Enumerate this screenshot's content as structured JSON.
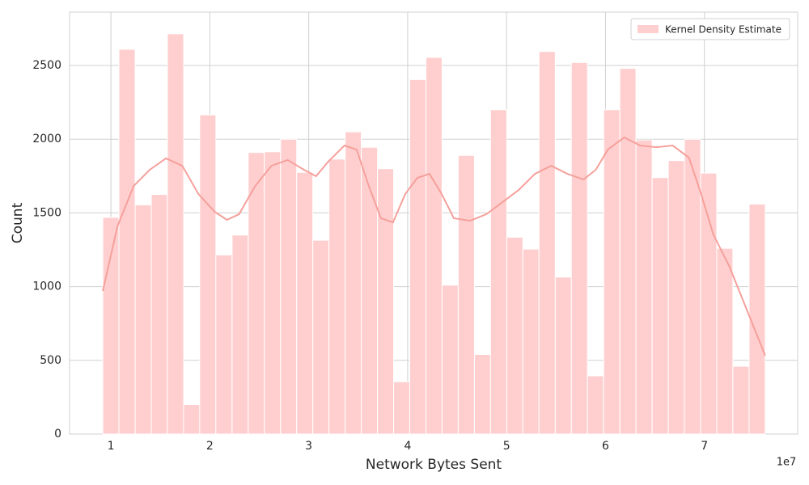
{
  "chart_data": {
    "type": "histogram",
    "xlabel": "Network Bytes Sent",
    "ylabel": "Count",
    "x_offset_label": "1e7",
    "bins": [
      0.918,
      1.081,
      1.245,
      1.408,
      1.571,
      1.735,
      1.898,
      2.061,
      2.225,
      2.388,
      2.551,
      2.715,
      2.878,
      3.041,
      3.205,
      3.368,
      3.531,
      3.695,
      3.858,
      4.021,
      4.185,
      4.348,
      4.511,
      4.675,
      4.838,
      5.002,
      5.165,
      5.328,
      5.492,
      5.655,
      5.818,
      5.982,
      6.145,
      6.308,
      6.472,
      6.635,
      6.798,
      6.962,
      7.125,
      7.288,
      7.452,
      7.615
    ],
    "values": [
      1470,
      2610,
      1555,
      1625,
      2715,
      200,
      2165,
      1215,
      1350,
      1910,
      1915,
      2000,
      1775,
      1315,
      1865,
      2050,
      1945,
      1800,
      355,
      2405,
      2555,
      1010,
      1890,
      540,
      2200,
      1335,
      1255,
      2595,
      1065,
      2520,
      395,
      2200,
      2480,
      1995,
      1740,
      1855,
      2000,
      1770,
      1260,
      460,
      1560
    ],
    "color": "#ffcfcf",
    "kde": {
      "color": "#f5a09b",
      "x": [
        0.918,
        1.066,
        1.23,
        1.393,
        1.557,
        1.721,
        1.885,
        2.049,
        2.172,
        2.295,
        2.459,
        2.623,
        2.787,
        2.951,
        3.074,
        3.197,
        3.361,
        3.484,
        3.607,
        3.73,
        3.852,
        3.975,
        4.098,
        4.221,
        4.344,
        4.467,
        4.631,
        4.795,
        4.959,
        5.123,
        5.287,
        5.451,
        5.615,
        5.779,
        5.902,
        6.025,
        6.189,
        6.352,
        6.516,
        6.68,
        6.844,
        6.967,
        7.09,
        7.254,
        7.418,
        7.615
      ],
      "values": [
        970,
        1409,
        1683,
        1793,
        1870,
        1820,
        1628,
        1508,
        1453,
        1491,
        1683,
        1820,
        1859,
        1793,
        1749,
        1848,
        1957,
        1930,
        1683,
        1464,
        1436,
        1628,
        1738,
        1765,
        1628,
        1464,
        1447,
        1491,
        1573,
        1656,
        1765,
        1820,
        1765,
        1727,
        1793,
        1930,
        2012,
        1957,
        1946,
        1957,
        1875,
        1628,
        1354,
        1135,
        861,
        532
      ]
    },
    "legend": {
      "label": "Kernel Density Estimate",
      "loc": "upper right"
    },
    "xlim": [
      0.582,
      7.943
    ],
    "ylim": [
      0,
      2862
    ],
    "xticks": [
      1,
      2,
      3,
      4,
      5,
      6,
      7
    ],
    "yticks": [
      0,
      500,
      1000,
      1500,
      2000,
      2500
    ],
    "grid": true
  }
}
